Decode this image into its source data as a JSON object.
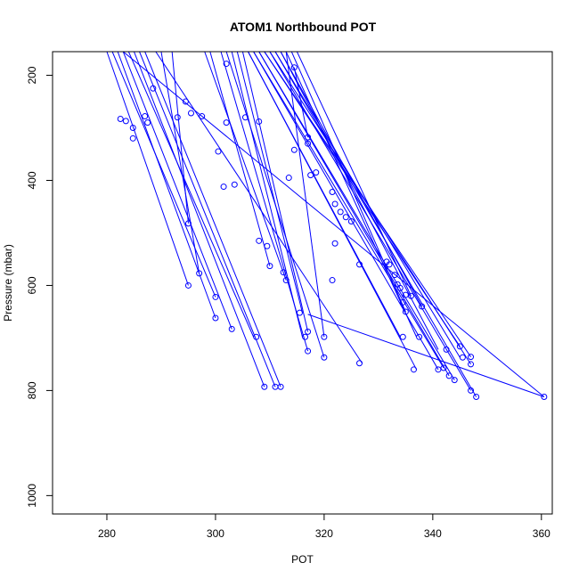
{
  "chart_data": {
    "type": "line",
    "title": "ATOM1 Northbound POT",
    "xlabel": "POT",
    "ylabel": "Pressure (mbar)",
    "xlim": [
      270,
      362
    ],
    "ylim": [
      1035,
      155
    ],
    "y_reversed": true,
    "x_ticks": [
      "280",
      "300",
      "320",
      "340",
      "360"
    ],
    "y_ticks": [
      "200",
      "400",
      "600",
      "800",
      "1000"
    ],
    "grid": false,
    "color": "#0000ff",
    "series": [
      {
        "x": [
          280,
          295
        ],
        "y": [
          155,
          600
        ]
      },
      {
        "x": [
          281,
          300
        ],
        "y": [
          155,
          622
        ]
      },
      {
        "x": [
          282,
          300
        ],
        "y": [
          155,
          662
        ]
      },
      {
        "x": [
          283,
          303
        ],
        "y": [
          155,
          683
        ]
      },
      {
        "x": [
          284,
          307
        ],
        "y": [
          155,
          698
        ]
      },
      {
        "x": [
          285,
          309
        ],
        "y": [
          155,
          793
        ]
      },
      {
        "x": [
          286,
          311
        ],
        "y": [
          155,
          793
        ]
      },
      {
        "x": [
          287,
          312
        ],
        "y": [
          155,
          793
        ]
      },
      {
        "x": [
          290,
          297
        ],
        "y": [
          155,
          577
        ]
      },
      {
        "x": [
          292,
          295
        ],
        "y": [
          155,
          482
        ]
      },
      {
        "x": [
          289,
          327
        ],
        "y": [
          155,
          748
        ]
      },
      {
        "x": [
          298,
          313
        ],
        "y": [
          155,
          590
        ]
      },
      {
        "x": [
          299,
          310
        ],
        "y": [
          155,
          563
        ]
      },
      {
        "x": [
          301,
          317
        ],
        "y": [
          155,
          725
        ]
      },
      {
        "x": [
          302,
          320
        ],
        "y": [
          155,
          737
        ]
      },
      {
        "x": [
          303,
          316
        ],
        "y": [
          155,
          698
        ]
      },
      {
        "x": [
          304,
          316
        ],
        "y": [
          155,
          652
        ]
      },
      {
        "x": [
          305,
          317
        ],
        "y": [
          155,
          688
        ]
      },
      {
        "x": [
          306,
          337
        ],
        "y": [
          155,
          760
        ]
      },
      {
        "x": [
          306,
          334
        ],
        "y": [
          155,
          698
        ]
      },
      {
        "x": [
          307,
          341
        ],
        "y": [
          155,
          760
        ]
      },
      {
        "x": [
          307,
          342
        ],
        "y": [
          155,
          757
        ]
      },
      {
        "x": [
          308,
          344
        ],
        "y": [
          155,
          780
        ]
      },
      {
        "x": [
          308,
          343
        ],
        "y": [
          155,
          772
        ]
      },
      {
        "x": [
          309,
          345
        ],
        "y": [
          155,
          716
        ]
      },
      {
        "x": [
          309,
          347
        ],
        "y": [
          155,
          736
        ]
      },
      {
        "x": [
          310,
          347
        ],
        "y": [
          155,
          750
        ]
      },
      {
        "x": [
          310,
          347
        ],
        "y": [
          155,
          800
        ]
      },
      {
        "x": [
          311,
          348
        ],
        "y": [
          155,
          812
        ]
      },
      {
        "x": [
          311,
          345
        ],
        "y": [
          155,
          737
        ]
      },
      {
        "x": [
          312,
          341
        ],
        "y": [
          155,
          722
        ]
      },
      {
        "x": [
          312,
          338
        ],
        "y": [
          155,
          640
        ]
      },
      {
        "x": [
          313,
          337
        ],
        "y": [
          155,
          698
        ]
      },
      {
        "x": [
          314,
          335
        ],
        "y": [
          155,
          650
        ]
      },
      {
        "x": [
          315,
          336
        ],
        "y": [
          155,
          620
        ]
      },
      {
        "x": [
          313,
          320
        ],
        "y": [
          155,
          698
        ]
      },
      {
        "x": [
          283,
          360.5
        ],
        "y": [
          155,
          812
        ]
      },
      {
        "x": [
          317,
          360.5
        ],
        "y": [
          655,
          812
        ]
      },
      {
        "x": [
          314.5,
          317
        ],
        "y": [
          185,
          318
        ]
      }
    ],
    "markers": [
      {
        "x": 314.5,
        "y": 185
      },
      {
        "x": 282.5,
        "y": 283
      },
      {
        "x": 283.5,
        "y": 287
      },
      {
        "x": 284.8,
        "y": 300
      },
      {
        "x": 284.8,
        "y": 320
      },
      {
        "x": 287,
        "y": 278
      },
      {
        "x": 287.5,
        "y": 290
      },
      {
        "x": 288.5,
        "y": 225
      },
      {
        "x": 293,
        "y": 280
      },
      {
        "x": 294.5,
        "y": 250
      },
      {
        "x": 295.5,
        "y": 272
      },
      {
        "x": 297.5,
        "y": 278
      },
      {
        "x": 302,
        "y": 178
      },
      {
        "x": 302,
        "y": 290
      },
      {
        "x": 305.5,
        "y": 280
      },
      {
        "x": 308,
        "y": 288
      },
      {
        "x": 300.5,
        "y": 345
      },
      {
        "x": 301.5,
        "y": 412
      },
      {
        "x": 303.5,
        "y": 408
      },
      {
        "x": 313.5,
        "y": 395
      },
      {
        "x": 314.5,
        "y": 342
      },
      {
        "x": 317,
        "y": 318
      },
      {
        "x": 317,
        "y": 330
      },
      {
        "x": 317.5,
        "y": 390
      },
      {
        "x": 321.5,
        "y": 422
      },
      {
        "x": 322,
        "y": 445
      },
      {
        "x": 323,
        "y": 460
      },
      {
        "x": 318.5,
        "y": 385
      },
      {
        "x": 324,
        "y": 470
      },
      {
        "x": 325,
        "y": 478
      },
      {
        "x": 322,
        "y": 520
      },
      {
        "x": 321.5,
        "y": 590
      },
      {
        "x": 326.5,
        "y": 560
      },
      {
        "x": 295,
        "y": 482
      },
      {
        "x": 308,
        "y": 515
      },
      {
        "x": 309.5,
        "y": 525
      },
      {
        "x": 310,
        "y": 563
      },
      {
        "x": 312.5,
        "y": 575
      },
      {
        "x": 313,
        "y": 590
      },
      {
        "x": 297,
        "y": 577
      },
      {
        "x": 295,
        "y": 600
      },
      {
        "x": 300,
        "y": 622
      },
      {
        "x": 300,
        "y": 662
      },
      {
        "x": 303,
        "y": 683
      },
      {
        "x": 307.5,
        "y": 698
      },
      {
        "x": 315.5,
        "y": 652
      },
      {
        "x": 316.5,
        "y": 698
      },
      {
        "x": 317,
        "y": 688
      },
      {
        "x": 317,
        "y": 725
      },
      {
        "x": 320,
        "y": 698
      },
      {
        "x": 320,
        "y": 737
      },
      {
        "x": 326.5,
        "y": 748
      },
      {
        "x": 309,
        "y": 793
      },
      {
        "x": 311,
        "y": 793
      },
      {
        "x": 312,
        "y": 793
      },
      {
        "x": 331.5,
        "y": 555
      },
      {
        "x": 332,
        "y": 560
      },
      {
        "x": 333,
        "y": 580
      },
      {
        "x": 333.5,
        "y": 598
      },
      {
        "x": 334,
        "y": 605
      },
      {
        "x": 334.5,
        "y": 632
      },
      {
        "x": 335,
        "y": 618
      },
      {
        "x": 335,
        "y": 650
      },
      {
        "x": 334.5,
        "y": 698
      },
      {
        "x": 336,
        "y": 620
      },
      {
        "x": 337.5,
        "y": 698
      },
      {
        "x": 338,
        "y": 640
      },
      {
        "x": 336.5,
        "y": 760
      },
      {
        "x": 341,
        "y": 760
      },
      {
        "x": 342,
        "y": 757
      },
      {
        "x": 342.5,
        "y": 722
      },
      {
        "x": 343,
        "y": 772
      },
      {
        "x": 344,
        "y": 780
      },
      {
        "x": 345,
        "y": 716
      },
      {
        "x": 345.5,
        "y": 737
      },
      {
        "x": 347,
        "y": 736
      },
      {
        "x": 347,
        "y": 750
      },
      {
        "x": 347,
        "y": 800
      },
      {
        "x": 348,
        "y": 812
      },
      {
        "x": 360.5,
        "y": 812
      }
    ]
  }
}
